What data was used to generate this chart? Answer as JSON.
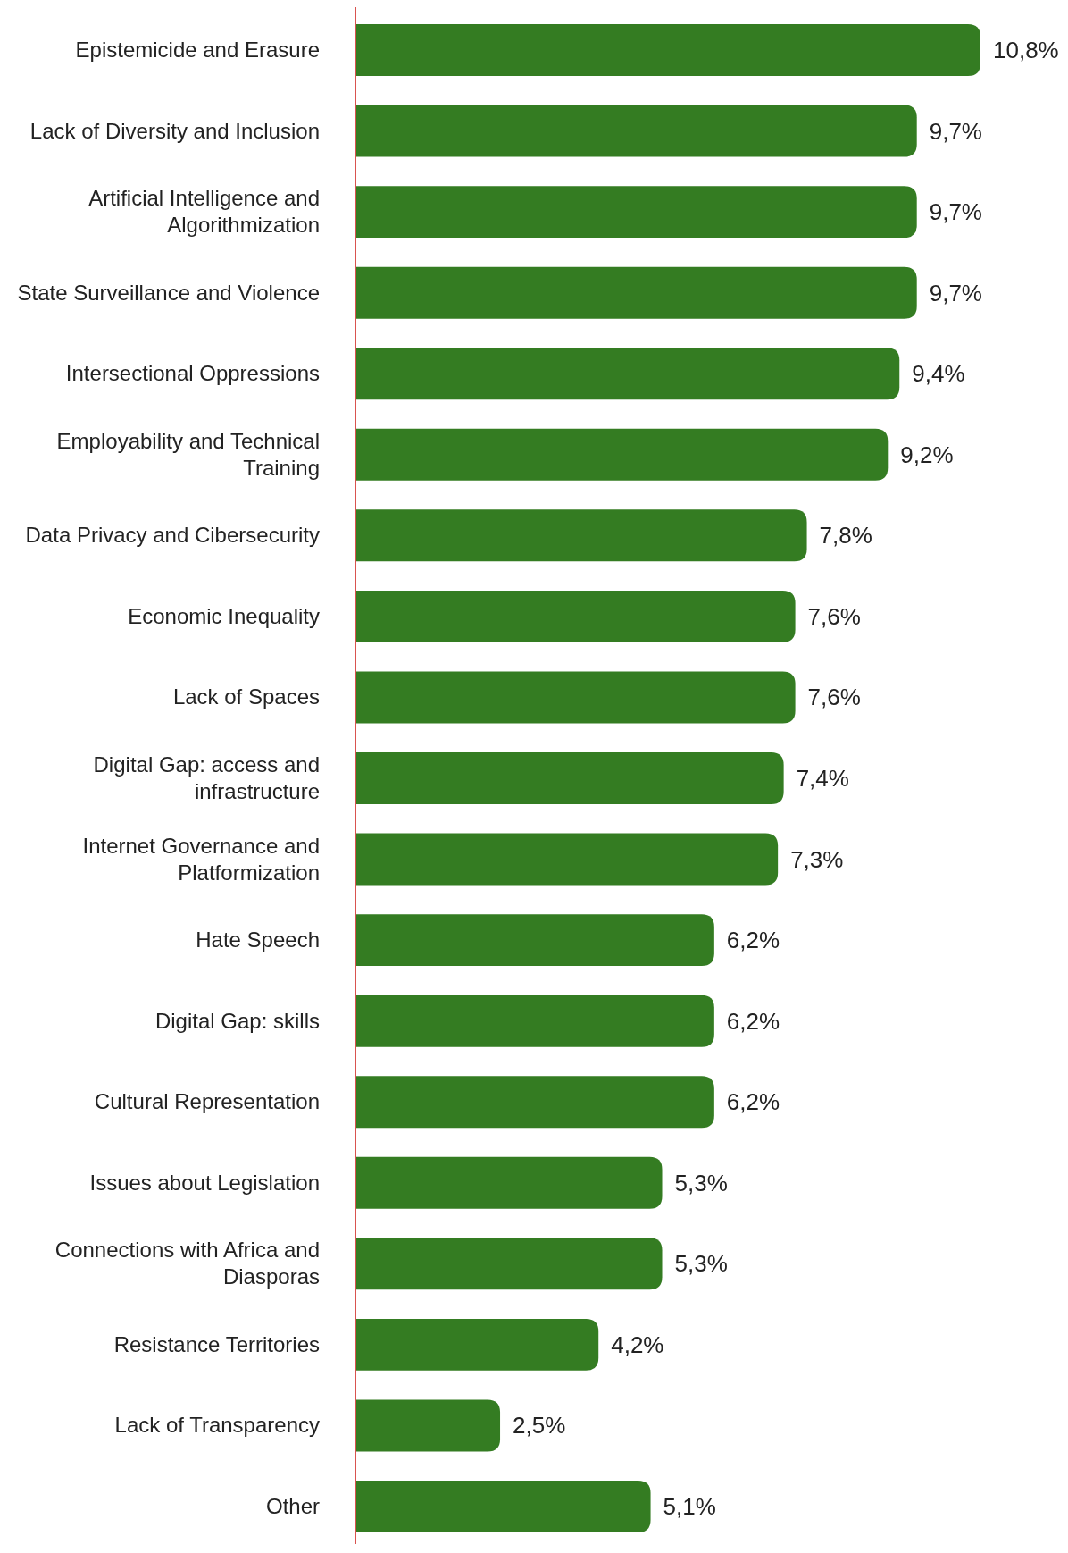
{
  "chart_data": {
    "type": "bar",
    "orientation": "horizontal",
    "categories": [
      "Epistemicide and Erasure",
      "Lack of Diversity and Inclusion",
      "Artificial Intelligence and Algorithmization",
      "State Surveillance and Violence",
      "Intersectional Oppressions",
      "Employability and Technical Training",
      "Data Privacy and Cibersecurity",
      "Economic Inequality",
      "Lack of Spaces",
      "Digital Gap: access and infrastructure",
      "Internet Governance and Platformization",
      "Hate Speech",
      "Digital Gap: skills",
      "Cultural Representation",
      "Issues about Legislation",
      "Connections with Africa and Diasporas",
      "Resistance Territories",
      "Lack of Transparency",
      "Other"
    ],
    "values": [
      10.8,
      9.7,
      9.7,
      9.7,
      9.4,
      9.2,
      7.8,
      7.6,
      7.6,
      7.4,
      7.3,
      6.2,
      6.2,
      6.2,
      5.3,
      5.3,
      4.2,
      2.5,
      5.1
    ],
    "value_labels": [
      "10,8%",
      "9,7%",
      "9,7%",
      "9,7%",
      "9,4%",
      "9,2%",
      "7,8%",
      "7,6%",
      "7,6%",
      "7,4%",
      "7,3%",
      "6,2%",
      "6,2%",
      "6,2%",
      "5,3%",
      "5,3%",
      "4,2%",
      "2,5%",
      "5,1%"
    ],
    "color": "#347c22"
  }
}
